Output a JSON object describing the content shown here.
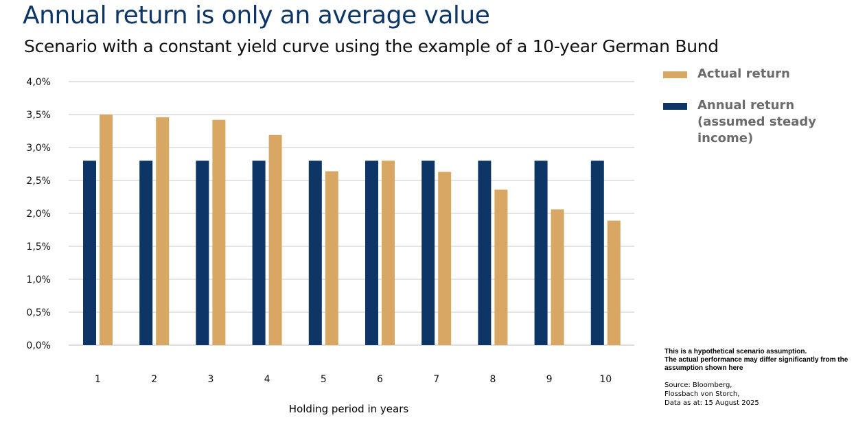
{
  "chart_data": {
    "type": "bar",
    "title": "Annual return is only an average value",
    "subtitle": "Scenario with a constant yield curve using the example of a 10-year German Bund",
    "xlabel": "Holding period in years",
    "ylabel": "",
    "categories": [
      "1",
      "2",
      "3",
      "4",
      "5",
      "6",
      "7",
      "8",
      "9",
      "10"
    ],
    "series": [
      {
        "name": "Annual return (assumed steady income)",
        "color": "#0d3566",
        "values": [
          2.8,
          2.8,
          2.8,
          2.8,
          2.8,
          2.8,
          2.8,
          2.8,
          2.8,
          2.8
        ]
      },
      {
        "name": "Actual return",
        "color": "#d9a764",
        "values": [
          3.5,
          3.46,
          3.42,
          3.19,
          2.64,
          2.8,
          2.63,
          2.36,
          2.06,
          1.89
        ]
      }
    ],
    "ylim": [
      0,
      4.0
    ],
    "yticks": [
      "0,0%",
      "0,5%",
      "1,0%",
      "1,5%",
      "2,0%",
      "2,5%",
      "3,0%",
      "3,5%",
      "4,0%"
    ],
    "grid": true,
    "legend_position": "right"
  },
  "legend": {
    "items": [
      {
        "label": "Actual return",
        "color": "#d9a764"
      },
      {
        "label": "Annual return (assumed steady income)",
        "color": "#0d3566"
      }
    ]
  },
  "note": {
    "line1": "This is a hypothetical scenario assumption.",
    "line2": "The actual performance may differ significantly from the assumption shown here"
  },
  "source": {
    "line1": "Source: Bloomberg,",
    "line2": "Flossbach von Storch,",
    "line3": "Data as at: 15 August 2025"
  }
}
